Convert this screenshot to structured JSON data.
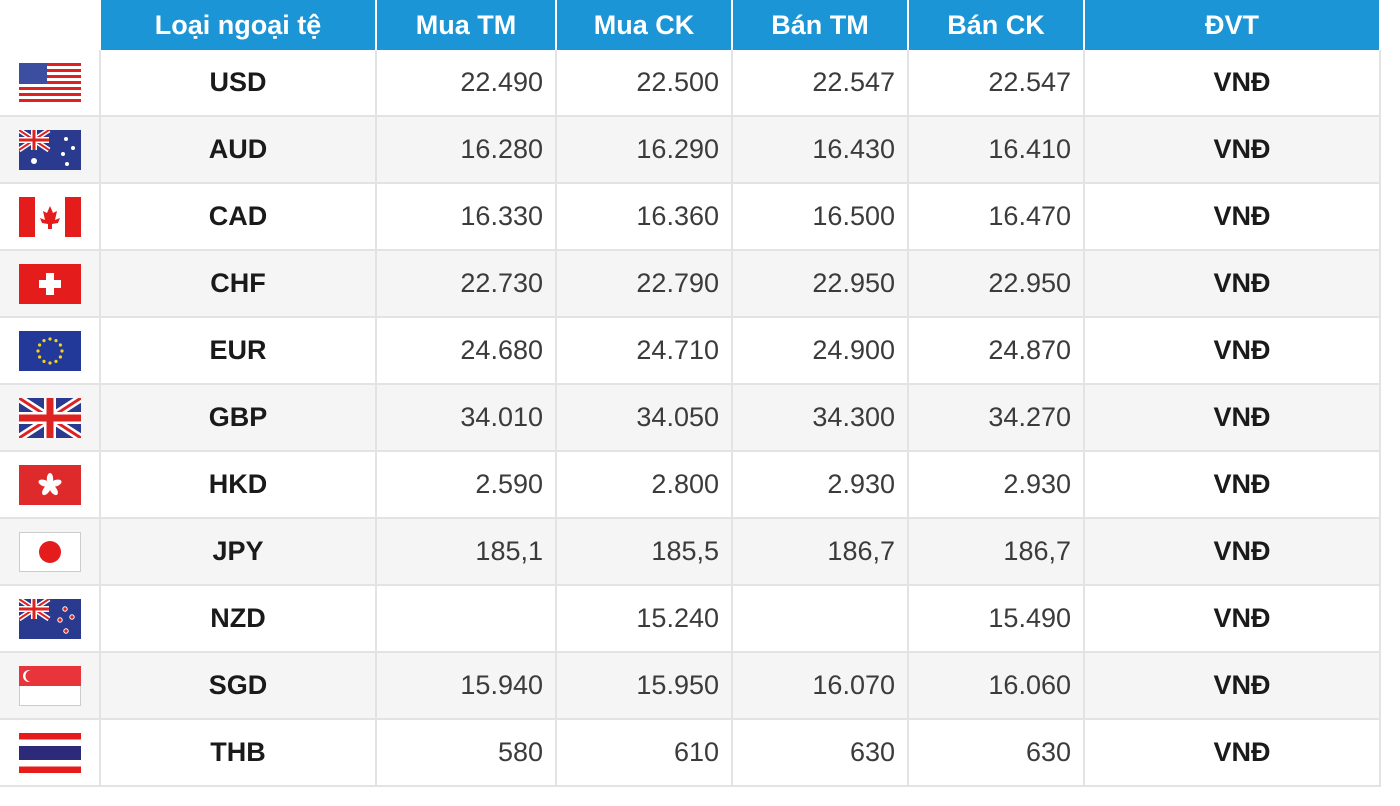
{
  "table": {
    "headers": {
      "currency": "Loại ngoại tệ",
      "buy_cash": "Mua TM",
      "buy_transfer": "Mua CK",
      "sell_cash": "Bán TM",
      "sell_transfer": "Bán CK",
      "unit": "ĐVT"
    },
    "rows": [
      {
        "flag": "us-flag-icon",
        "code": "USD",
        "buy_cash": "22.490",
        "buy_transfer": "22.500",
        "sell_cash": "22.547",
        "sell_transfer": "22.547",
        "unit": "VNĐ"
      },
      {
        "flag": "au-flag-icon",
        "code": "AUD",
        "buy_cash": "16.280",
        "buy_transfer": "16.290",
        "sell_cash": "16.430",
        "sell_transfer": "16.410",
        "unit": "VNĐ"
      },
      {
        "flag": "ca-flag-icon",
        "code": "CAD",
        "buy_cash": "16.330",
        "buy_transfer": "16.360",
        "sell_cash": "16.500",
        "sell_transfer": "16.470",
        "unit": "VNĐ"
      },
      {
        "flag": "ch-flag-icon",
        "code": "CHF",
        "buy_cash": "22.730",
        "buy_transfer": "22.790",
        "sell_cash": "22.950",
        "sell_transfer": "22.950",
        "unit": "VNĐ"
      },
      {
        "flag": "eu-flag-icon",
        "code": "EUR",
        "buy_cash": "24.680",
        "buy_transfer": "24.710",
        "sell_cash": "24.900",
        "sell_transfer": "24.870",
        "unit": "VNĐ"
      },
      {
        "flag": "gb-flag-icon",
        "code": "GBP",
        "buy_cash": "34.010",
        "buy_transfer": "34.050",
        "sell_cash": "34.300",
        "sell_transfer": "34.270",
        "unit": "VNĐ"
      },
      {
        "flag": "hk-flag-icon",
        "code": "HKD",
        "buy_cash": "2.590",
        "buy_transfer": "2.800",
        "sell_cash": "2.930",
        "sell_transfer": "2.930",
        "unit": "VNĐ"
      },
      {
        "flag": "jp-flag-icon",
        "code": "JPY",
        "buy_cash": "185,1",
        "buy_transfer": "185,5",
        "sell_cash": "186,7",
        "sell_transfer": "186,7",
        "unit": "VNĐ"
      },
      {
        "flag": "nz-flag-icon",
        "code": "NZD",
        "buy_cash": "",
        "buy_transfer": "15.240",
        "sell_cash": "",
        "sell_transfer": "15.490",
        "unit": "VNĐ"
      },
      {
        "flag": "sg-flag-icon",
        "code": "SGD",
        "buy_cash": "15.940",
        "buy_transfer": "15.950",
        "sell_cash": "16.070",
        "sell_transfer": "16.060",
        "unit": "VNĐ"
      },
      {
        "flag": "th-flag-icon",
        "code": "THB",
        "buy_cash": "580",
        "buy_transfer": "610",
        "sell_cash": "630",
        "sell_transfer": "630",
        "unit": "VNĐ"
      }
    ]
  },
  "colors": {
    "header_bg": "#1b95d6",
    "header_text": "#ffffff",
    "alt_row_bg": "#f5f5f5"
  }
}
